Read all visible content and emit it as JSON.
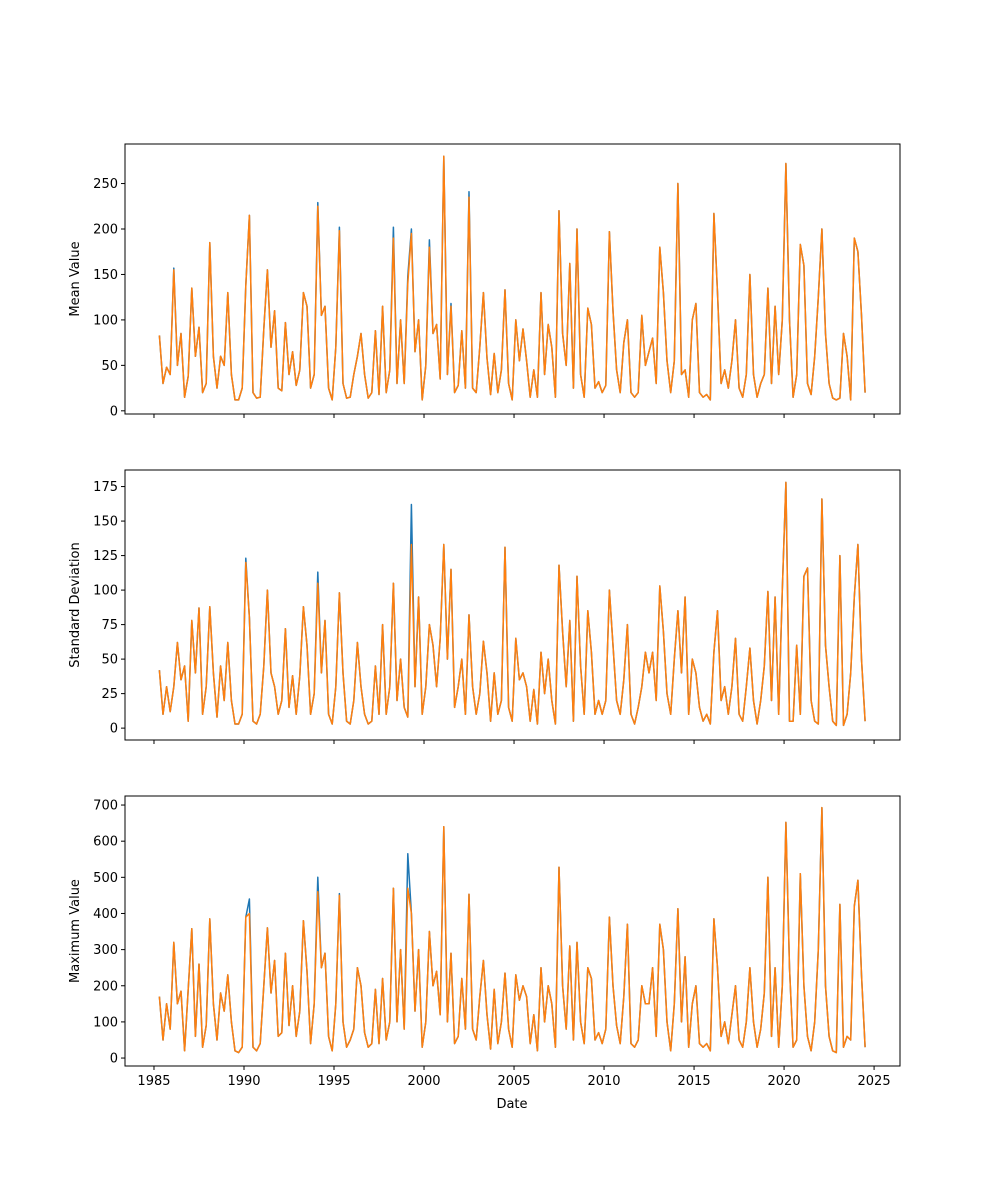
{
  "chart_data": {
    "type": "line",
    "xlabel": "Date",
    "xlim": [
      1983.39,
      2026.44
    ],
    "xticks": [
      "1985",
      "1990",
      "1995",
      "2000",
      "2005",
      "2010",
      "2015",
      "2020",
      "2025"
    ],
    "x_start": 1985.3,
    "x_step": 0.2,
    "colors": {
      "series1": "#1f77b4",
      "series2": "#ff7f0e"
    },
    "panels": [
      {
        "ylabel": "Mean Value",
        "ylim": [
          -3.5,
          293.5
        ],
        "yticks": [
          "0",
          "50",
          "100",
          "150",
          "200",
          "250"
        ],
        "series2_values": [
          83,
          30,
          48,
          40,
          155,
          50,
          85,
          15,
          38,
          135,
          60,
          92,
          20,
          30,
          185,
          60,
          25,
          60,
          50,
          130,
          40,
          12,
          12,
          25,
          138,
          215,
          20,
          14,
          15,
          90,
          155,
          70,
          110,
          25,
          22,
          97,
          40,
          65,
          28,
          45,
          130,
          115,
          25,
          40,
          225,
          105,
          115,
          25,
          12,
          70,
          198,
          30,
          14,
          15,
          40,
          60,
          85,
          40,
          14,
          20,
          88,
          18,
          115,
          20,
          45,
          190,
          30,
          100,
          30,
          140,
          195,
          65,
          100,
          12,
          50,
          180,
          85,
          95,
          35,
          280,
          40,
          115,
          20,
          28,
          88,
          25,
          235,
          25,
          20,
          70,
          130,
          58,
          18,
          63,
          20,
          45,
          133,
          30,
          12,
          100,
          55,
          90,
          55,
          15,
          45,
          15,
          130,
          40,
          95,
          70,
          15,
          220,
          85,
          50,
          162,
          25,
          200,
          40,
          15,
          113,
          95,
          25,
          32,
          20,
          28,
          197,
          110,
          45,
          20,
          75,
          100,
          20,
          15,
          20,
          105,
          50,
          65,
          80,
          30,
          180,
          130,
          55,
          20,
          55,
          250,
          40,
          45,
          15,
          100,
          118,
          20,
          15,
          18,
          12,
          217,
          130,
          30,
          45,
          25,
          55,
          100,
          25,
          15,
          40,
          150,
          40,
          15,
          30,
          40,
          135,
          30,
          115,
          40,
          100,
          272,
          100,
          15,
          40,
          183,
          160,
          30,
          18,
          60,
          125,
          200,
          85,
          30,
          14,
          12,
          14,
          85,
          60,
          12,
          190,
          175,
          105,
          20
        ],
        "series1_differences": [
          [
            1986.1,
            157
          ],
          [
            1994.1,
            229
          ],
          [
            1995.3,
            202
          ],
          [
            1998.3,
            202
          ],
          [
            1999.1,
            148
          ],
          [
            1999.3,
            200
          ],
          [
            2000.3,
            188
          ],
          [
            2001.5,
            118
          ],
          [
            2002.5,
            241
          ]
        ]
      },
      {
        "ylabel": "Standard Deviation",
        "ylim": [
          -8.6,
          187
        ],
        "yticks": [
          "0",
          "25",
          "50",
          "75",
          "100",
          "125",
          "150",
          "175"
        ],
        "series2_values": [
          42,
          10,
          30,
          12,
          30,
          62,
          35,
          45,
          5,
          78,
          40,
          87,
          10,
          30,
          88,
          40,
          8,
          45,
          20,
          62,
          20,
          3,
          3,
          10,
          120,
          80,
          5,
          3,
          10,
          45,
          100,
          40,
          30,
          10,
          20,
          72,
          15,
          38,
          10,
          38,
          88,
          60,
          10,
          25,
          105,
          40,
          78,
          10,
          3,
          30,
          98,
          40,
          5,
          3,
          20,
          62,
          30,
          10,
          3,
          5,
          45,
          10,
          75,
          10,
          30,
          105,
          20,
          50,
          15,
          8,
          133,
          30,
          95,
          10,
          30,
          75,
          60,
          30,
          65,
          133,
          50,
          115,
          15,
          30,
          50,
          10,
          82,
          30,
          10,
          25,
          63,
          40,
          5,
          40,
          10,
          20,
          131,
          15,
          5,
          65,
          35,
          40,
          30,
          5,
          28,
          3,
          55,
          25,
          50,
          20,
          3,
          118,
          70,
          30,
          78,
          5,
          110,
          45,
          10,
          85,
          55,
          10,
          20,
          10,
          20,
          100,
          60,
          20,
          10,
          35,
          75,
          10,
          3,
          15,
          30,
          55,
          40,
          55,
          20,
          103,
          70,
          25,
          10,
          50,
          85,
          40,
          95,
          10,
          50,
          40,
          15,
          5,
          10,
          3,
          55,
          85,
          20,
          30,
          10,
          30,
          65,
          10,
          5,
          30,
          58,
          20,
          3,
          20,
          45,
          99,
          20,
          95,
          10,
          100,
          178,
          5,
          5,
          60,
          10,
          110,
          116,
          20,
          5,
          3,
          166,
          60,
          30,
          5,
          2,
          125,
          2,
          10,
          40,
          95,
          133,
          50,
          5
        ],
        "series1_differences": [
          [
            1990.1,
            123
          ],
          [
            1994.1,
            113
          ],
          [
            1999.3,
            162
          ]
        ]
      },
      {
        "ylabel": "Maximum Value",
        "ylim": [
          -22,
          725
        ],
        "yticks": [
          "0",
          "100",
          "200",
          "300",
          "400",
          "500",
          "600",
          "700"
        ],
        "series2_values": [
          170,
          50,
          150,
          80,
          320,
          150,
          185,
          20,
          190,
          358,
          60,
          260,
          30,
          90,
          385,
          150,
          50,
          180,
          130,
          230,
          100,
          20,
          15,
          30,
          390,
          400,
          30,
          20,
          40,
          200,
          360,
          180,
          270,
          60,
          70,
          290,
          90,
          200,
          60,
          130,
          380,
          240,
          40,
          150,
          460,
          250,
          290,
          60,
          20,
          150,
          450,
          100,
          30,
          50,
          80,
          250,
          200,
          70,
          30,
          40,
          190,
          40,
          220,
          50,
          100,
          470,
          100,
          300,
          80,
          470,
          400,
          130,
          300,
          30,
          100,
          350,
          200,
          240,
          120,
          640,
          100,
          290,
          40,
          60,
          220,
          80,
          453,
          80,
          50,
          170,
          270,
          120,
          25,
          190,
          40,
          100,
          235,
          80,
          30,
          230,
          160,
          200,
          170,
          40,
          120,
          20,
          250,
          100,
          200,
          150,
          30,
          528,
          200,
          80,
          310,
          50,
          320,
          100,
          40,
          250,
          220,
          50,
          70,
          40,
          80,
          390,
          200,
          90,
          40,
          170,
          370,
          40,
          30,
          50,
          200,
          150,
          150,
          250,
          60,
          370,
          300,
          100,
          20,
          150,
          413,
          100,
          280,
          30,
          150,
          200,
          40,
          30,
          40,
          20,
          385,
          250,
          60,
          100,
          40,
          120,
          200,
          50,
          30,
          100,
          250,
          100,
          30,
          80,
          180,
          500,
          60,
          250,
          30,
          200,
          652,
          250,
          30,
          50,
          510,
          200,
          60,
          20,
          100,
          300,
          693,
          200,
          60,
          20,
          15,
          425,
          30,
          60,
          50,
          420,
          492,
          230,
          30
        ],
        "series1_differences": [
          [
            1990.3,
            440
          ],
          [
            1994.1,
            500
          ],
          [
            1995.3,
            455
          ],
          [
            1999.1,
            565
          ]
        ]
      }
    ]
  }
}
